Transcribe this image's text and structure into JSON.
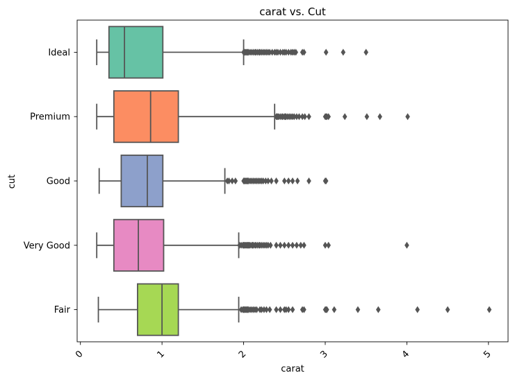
{
  "chart_data": {
    "type": "boxplot",
    "orientation": "horizontal",
    "title": "carat vs. Cut",
    "xlabel": "carat",
    "ylabel": "cut",
    "xlim": [
      -0.04,
      5.24
    ],
    "xticks": [
      "0",
      "1",
      "2",
      "3",
      "4",
      "5"
    ],
    "xtick_values": [
      0,
      1,
      2,
      3,
      4,
      5
    ],
    "grid": false,
    "categories": [
      "Ideal",
      "Premium",
      "Good",
      "Very Good",
      "Fair"
    ],
    "boxes": [
      {
        "name": "Ideal",
        "color": "#66c2a5",
        "whisker_low": 0.2,
        "q1": 0.35,
        "median": 0.54,
        "q3": 1.01,
        "whisker_high": 2.0,
        "outliers": [
          2.0,
          2.01,
          2.02,
          2.03,
          2.04,
          2.05,
          2.06,
          2.08,
          2.1,
          2.12,
          2.14,
          2.15,
          2.17,
          2.19,
          2.2,
          2.22,
          2.24,
          2.26,
          2.28,
          2.3,
          2.32,
          2.35,
          2.38,
          2.4,
          2.42,
          2.45,
          2.48,
          2.5,
          2.52,
          2.55,
          2.58,
          2.6,
          2.62,
          2.64,
          2.72,
          2.74,
          3.01,
          3.22,
          3.5
        ]
      },
      {
        "name": "Premium",
        "color": "#fc8d62",
        "whisker_low": 0.2,
        "q1": 0.41,
        "median": 0.86,
        "q3": 1.2,
        "whisker_high": 2.38,
        "outliers": [
          2.4,
          2.41,
          2.42,
          2.43,
          2.45,
          2.47,
          2.48,
          2.5,
          2.51,
          2.52,
          2.54,
          2.56,
          2.58,
          2.6,
          2.62,
          2.65,
          2.68,
          2.72,
          2.75,
          2.8,
          3.0,
          3.01,
          3.02,
          3.04,
          3.24,
          3.51,
          3.67,
          4.01
        ]
      },
      {
        "name": "Good",
        "color": "#8da0cb",
        "whisker_low": 0.23,
        "q1": 0.5,
        "median": 0.82,
        "q3": 1.01,
        "whisker_high": 1.77,
        "outliers": [
          1.8,
          1.82,
          1.86,
          1.9,
          2.0,
          2.01,
          2.02,
          2.03,
          2.04,
          2.05,
          2.06,
          2.08,
          2.1,
          2.12,
          2.14,
          2.16,
          2.18,
          2.2,
          2.22,
          2.24,
          2.27,
          2.3,
          2.34,
          2.4,
          2.5,
          2.55,
          2.6,
          2.66,
          2.8,
          3.0,
          3.01
        ]
      },
      {
        "name": "Very Good",
        "color": "#e78ac3",
        "whisker_low": 0.2,
        "q1": 0.41,
        "median": 0.71,
        "q3": 1.02,
        "whisker_high": 1.94,
        "outliers": [
          1.95,
          1.97,
          1.99,
          2.0,
          2.01,
          2.02,
          2.03,
          2.04,
          2.05,
          2.06,
          2.07,
          2.08,
          2.1,
          2.11,
          2.12,
          2.14,
          2.15,
          2.17,
          2.19,
          2.2,
          2.22,
          2.24,
          2.26,
          2.28,
          2.3,
          2.33,
          2.4,
          2.45,
          2.5,
          2.55,
          2.6,
          2.65,
          2.7,
          2.74,
          3.0,
          3.04,
          4.0
        ]
      },
      {
        "name": "Fair",
        "color": "#a6d854",
        "whisker_low": 0.22,
        "q1": 0.7,
        "median": 1.0,
        "q3": 1.2,
        "whisker_high": 1.94,
        "outliers": [
          1.97,
          1.99,
          2.0,
          2.01,
          2.02,
          2.03,
          2.04,
          2.05,
          2.06,
          2.08,
          2.1,
          2.12,
          2.14,
          2.16,
          2.2,
          2.22,
          2.25,
          2.28,
          2.32,
          2.4,
          2.45,
          2.5,
          2.52,
          2.55,
          2.6,
          2.72,
          2.74,
          3.0,
          3.01,
          3.02,
          3.11,
          3.4,
          3.65,
          4.13,
          4.5,
          5.01
        ]
      }
    ]
  }
}
